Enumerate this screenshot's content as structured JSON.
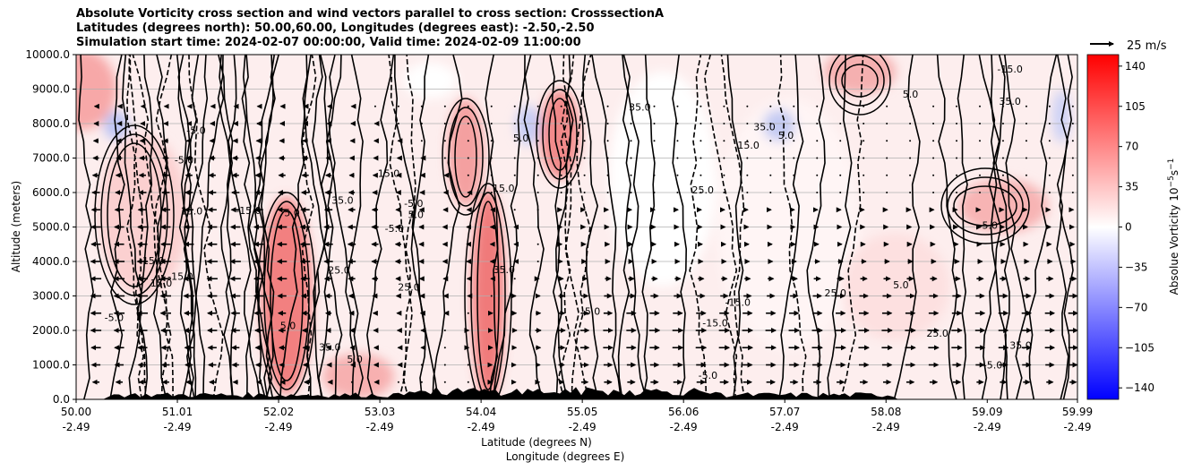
{
  "header": {
    "title_line1": "Absolute Vorticity cross section and wind vectors parallel to cross section: CrosssectionA",
    "title_line2": "Latitudes (degrees north): 50.00,60.00, Longitudes (degrees east): -2.50,-2.50",
    "title_line3": "Simulation start time: 2024-02-07 00:00:00, Valid time: 2024-02-09 11:00:00"
  },
  "chart_data": {
    "type": "heatmap",
    "ylabel": "Altitude (meters)",
    "xlabel_line1": "Latitude (degrees N)",
    "xlabel_line2": "Longitude (degrees E)",
    "x_range": [
      50.0,
      59.99
    ],
    "y_range": [
      0,
      10000
    ],
    "x_ticks": [
      {
        "value": 50.0,
        "lat": "50.00",
        "lon": "-2.49"
      },
      {
        "value": 51.01,
        "lat": "51.01",
        "lon": "-2.49"
      },
      {
        "value": 52.02,
        "lat": "52.02",
        "lon": "-2.49"
      },
      {
        "value": 53.03,
        "lat": "53.03",
        "lon": "-2.49"
      },
      {
        "value": 54.04,
        "lat": "54.04",
        "lon": "-2.49"
      },
      {
        "value": 55.05,
        "lat": "55.05",
        "lon": "-2.49"
      },
      {
        "value": 56.06,
        "lat": "56.06",
        "lon": "-2.49"
      },
      {
        "value": 57.07,
        "lat": "57.07",
        "lon": "-2.49"
      },
      {
        "value": 58.08,
        "lat": "58.08",
        "lon": "-2.49"
      },
      {
        "value": 59.09,
        "lat": "59.09",
        "lon": "-2.49"
      },
      {
        "value": 59.99,
        "lat": "59.99",
        "lon": "-2.49"
      }
    ],
    "y_ticks": [
      {
        "value": 0,
        "label": "0.0"
      },
      {
        "value": 1000,
        "label": "1000.0"
      },
      {
        "value": 2000,
        "label": "2000.0"
      },
      {
        "value": 3000,
        "label": "3000.0"
      },
      {
        "value": 4000,
        "label": "4000.0"
      },
      {
        "value": 5000,
        "label": "5000.0"
      },
      {
        "value": 6000,
        "label": "6000.0"
      },
      {
        "value": 7000,
        "label": "7000.0"
      },
      {
        "value": 8000,
        "label": "8000.0"
      },
      {
        "value": 9000,
        "label": "9000.0"
      },
      {
        "value": 10000,
        "label": "10000.0"
      }
    ],
    "grid": "horizontal",
    "colorbar": {
      "label": "Absolue Vorticity 10$^{-5}$s$^{-1}$",
      "label_main": "Absolue Vorticity 10",
      "label_exp1": "−5",
      "label_mid": "s",
      "label_exp2": "−1",
      "range": [
        -150,
        150
      ],
      "ticks": [
        {
          "value": 140,
          "label": "140"
        },
        {
          "value": 105,
          "label": "105"
        },
        {
          "value": 70,
          "label": "70"
        },
        {
          "value": 35,
          "label": "35"
        },
        {
          "value": 0,
          "label": "0"
        },
        {
          "value": -35,
          "label": "−35"
        },
        {
          "value": -70,
          "label": "−70"
        },
        {
          "value": -105,
          "label": "−105"
        },
        {
          "value": -140,
          "label": "−140"
        }
      ],
      "colors": {
        "low": "#0000ff",
        "mid": "#ffffff",
        "high": "#ff0000"
      }
    },
    "quiver_key": {
      "label": "25 m/s",
      "speed": 25
    },
    "wind_vectors": [
      {
        "y": 500,
        "u": [
          -7,
          -7,
          -7,
          -7,
          -6,
          -6,
          -5,
          -4,
          -3,
          -2,
          -1,
          0,
          -1,
          0,
          0,
          0,
          0,
          1,
          2,
          3,
          5,
          7,
          8,
          8,
          8,
          9,
          9,
          9,
          9,
          9,
          8,
          8,
          8,
          8,
          8,
          8,
          8,
          8,
          7,
          7,
          7,
          7,
          7
        ]
      },
      {
        "y": 1000,
        "u": [
          -9,
          -9,
          -9,
          -8,
          -8,
          -8,
          -7,
          -6,
          -5,
          -4,
          -3,
          -2,
          -2,
          -1,
          0,
          0,
          0,
          1,
          2,
          4,
          6,
          8,
          9,
          9,
          9,
          10,
          10,
          10,
          10,
          10,
          10,
          10,
          10,
          10,
          10,
          10,
          10,
          9,
          9,
          9,
          9,
          9,
          9
        ]
      },
      {
        "y": 1500,
        "u": [
          -10,
          -10,
          -10,
          -9,
          -9,
          -9,
          -8,
          -7,
          -6,
          -5,
          -4,
          -3,
          -2,
          -1,
          -1,
          0,
          1,
          2,
          3,
          5,
          7,
          9,
          10,
          10,
          10,
          11,
          11,
          11,
          11,
          11,
          11,
          11,
          11,
          11,
          11,
          11,
          11,
          11,
          10,
          10,
          10,
          10,
          10
        ]
      },
      {
        "y": 2000,
        "u": [
          -11,
          -11,
          -10,
          -10,
          -10,
          -10,
          -9,
          -8,
          -7,
          -6,
          -5,
          -4,
          -3,
          -2,
          -1,
          0,
          1,
          2,
          4,
          6,
          8,
          9,
          10,
          10,
          11,
          11,
          11,
          11,
          11,
          11,
          11,
          11,
          11,
          11,
          11,
          11,
          11,
          11,
          10,
          10,
          10,
          10,
          10
        ]
      },
      {
        "y": 2500,
        "u": [
          -11,
          -11,
          -11,
          -11,
          -10,
          -10,
          -9,
          -9,
          -8,
          -7,
          -6,
          -5,
          -4,
          -3,
          -2,
          -1,
          0,
          2,
          3,
          5,
          7,
          8,
          9,
          10,
          10,
          10,
          10,
          10,
          10,
          10,
          10,
          10,
          10,
          10,
          10,
          10,
          10,
          10,
          10,
          10,
          10,
          10,
          10
        ]
      },
      {
        "y": 3000,
        "u": [
          -11,
          -11,
          -11,
          -11,
          -11,
          -10,
          -10,
          -10,
          -9,
          -8,
          -7,
          -6,
          -5,
          -4,
          -3,
          -2,
          -1,
          0,
          2,
          4,
          6,
          7,
          8,
          8,
          8,
          8,
          8,
          8,
          8,
          8,
          8,
          9,
          9,
          9,
          9,
          9,
          9,
          9,
          9,
          9,
          9,
          9,
          9
        ]
      },
      {
        "y": 3500,
        "u": [
          -11,
          -11,
          -11,
          -11,
          -11,
          -11,
          -11,
          -10,
          -10,
          -9,
          -8,
          -7,
          -6,
          -5,
          -4,
          -3,
          -2,
          -1,
          0,
          2,
          4,
          5,
          6,
          6,
          6,
          6,
          6,
          6,
          6,
          6,
          7,
          7,
          7,
          7,
          7,
          7,
          7,
          7,
          7,
          7,
          7,
          7,
          7
        ]
      },
      {
        "y": 4000,
        "u": [
          -11,
          -11,
          -11,
          -11,
          -11,
          -11,
          -11,
          -11,
          -10,
          -10,
          -9,
          -8,
          -7,
          -6,
          -5,
          -4,
          -3,
          -2,
          -1,
          0,
          2,
          3,
          4,
          4,
          4,
          4,
          4,
          4,
          4,
          4,
          5,
          5,
          5,
          5,
          5,
          5,
          5,
          5,
          5,
          5,
          5,
          5,
          5
        ]
      },
      {
        "y": 4500,
        "u": [
          -10,
          -10,
          -10,
          -10,
          -10,
          -10,
          -10,
          -10,
          -10,
          -10,
          -9,
          -8,
          -7,
          -6,
          -5,
          -4,
          -3,
          -2,
          -1,
          0,
          1,
          2,
          3,
          3,
          3,
          3,
          3,
          3,
          3,
          3,
          3,
          3,
          3,
          3,
          3,
          3,
          3,
          3,
          3,
          3,
          3,
          3,
          3
        ]
      },
      {
        "y": 5000,
        "u": [
          -10,
          -10,
          -10,
          -10,
          -10,
          -10,
          -10,
          -10,
          -10,
          -10,
          -9,
          -8,
          -7,
          -6,
          -5,
          -4,
          -3,
          -2,
          -1,
          0,
          1,
          1,
          2,
          2,
          2,
          2,
          2,
          2,
          2,
          2,
          2,
          2,
          2,
          2,
          2,
          2,
          2,
          2,
          2,
          2,
          2,
          2,
          2
        ]
      },
      {
        "y": 5500,
        "u": [
          -9,
          -9,
          -9,
          -9,
          -9,
          -9,
          -9,
          -9,
          -9,
          -9,
          -8,
          -7,
          -6,
          -5,
          -4,
          -3,
          -2,
          -1,
          0,
          0,
          1,
          1,
          1,
          1,
          1,
          1,
          1,
          1,
          1,
          1,
          1,
          1,
          1,
          1,
          1,
          1,
          1,
          1,
          1,
          1,
          1,
          1,
          1
        ]
      },
      {
        "y": 6000,
        "u": [
          -8,
          -8,
          -8,
          -8,
          -8,
          -8,
          -8,
          -8,
          -8,
          -8,
          -7,
          -6,
          -5,
          -4,
          -3,
          -2,
          -1,
          0,
          0,
          0,
          0,
          0,
          0,
          0,
          0,
          0,
          0,
          0,
          0,
          0,
          0,
          0,
          0,
          0,
          0,
          0,
          0,
          0,
          0,
          0,
          0,
          0,
          0
        ]
      },
      {
        "y": 6500,
        "u": [
          -7,
          -7,
          -7,
          -7,
          -7,
          -7,
          -7,
          -7,
          -7,
          -7,
          -6,
          -5,
          -4,
          -3,
          -2,
          -1,
          0,
          0,
          0,
          0,
          0,
          0,
          0,
          0,
          0,
          0,
          0,
          0,
          0,
          0,
          0,
          0,
          0,
          0,
          0,
          0,
          0,
          0,
          0,
          0,
          0,
          0,
          0
        ]
      },
      {
        "y": 7000,
        "u": [
          -6,
          -6,
          -6,
          -6,
          -6,
          -6,
          -6,
          -6,
          -6,
          -6,
          -5,
          -4,
          -3,
          -2,
          -1,
          0,
          0,
          0,
          0,
          0,
          0,
          0,
          0,
          0,
          0,
          0,
          0,
          0,
          0,
          0,
          0,
          0,
          0,
          0,
          0,
          0,
          0,
          0,
          0,
          0,
          0,
          0,
          0
        ]
      },
      {
        "y": 7500,
        "u": [
          -5,
          -5,
          -5,
          -5,
          -5,
          -5,
          -5,
          -5,
          -5,
          -5,
          -4,
          -3,
          -2,
          -1,
          0,
          0,
          0,
          0,
          0,
          0,
          0,
          0,
          0,
          0,
          0,
          0,
          0,
          0,
          0,
          0,
          0,
          0,
          0,
          0,
          0,
          0,
          0,
          0,
          0,
          0,
          0,
          0,
          0
        ]
      },
      {
        "y": 8000,
        "u": [
          -4,
          -4,
          -4,
          -4,
          -4,
          -4,
          -4,
          -4,
          -4,
          -4,
          -3,
          -2,
          -1,
          0,
          0,
          0,
          0,
          0,
          0,
          0,
          0,
          0,
          0,
          0,
          0,
          0,
          0,
          0,
          0,
          0,
          0,
          0,
          0,
          0,
          0,
          0,
          0,
          0,
          0,
          0,
          0,
          0,
          0
        ]
      },
      {
        "y": 8500,
        "u": [
          -3,
          -3,
          -3,
          -3,
          -3,
          -3,
          -3,
          -3,
          -3,
          -3,
          -2,
          -1,
          0,
          0,
          0,
          0,
          0,
          0,
          0,
          0,
          0,
          0,
          0,
          0,
          0,
          0,
          0,
          0,
          0,
          0,
          0,
          0,
          0,
          0,
          0,
          0,
          0,
          0,
          0,
          0,
          0,
          0,
          0
        ]
      }
    ],
    "wind_x_start": 50.2,
    "wind_x_step": 0.232,
    "contour_labels": [
      "5.0",
      "15.0",
      "25.0",
      "35.0",
      "-5.0",
      "-15.0"
    ]
  }
}
